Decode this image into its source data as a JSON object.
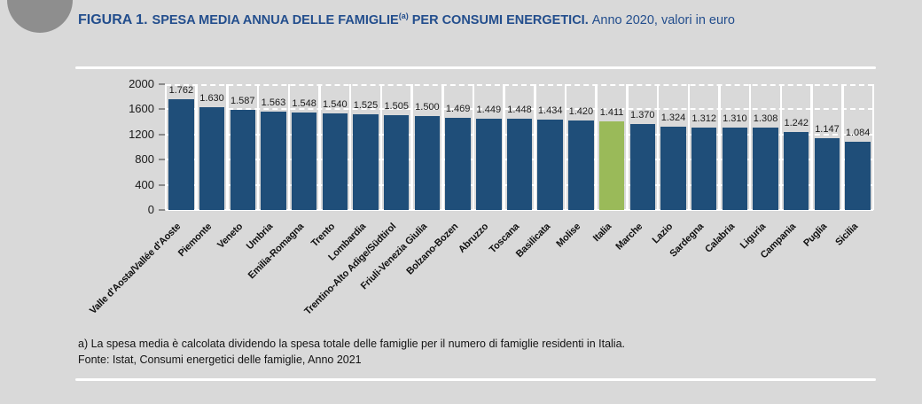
{
  "header": {
    "figure_label": "FIGURA 1.",
    "title_bold": "SPESA MEDIA ANNUA DELLE FAMIGLIE",
    "title_superscript": "(a)",
    "title_bold_2": "PER CONSUMI ENERGETICI.",
    "subtitle": "Anno 2020, valori in euro"
  },
  "icons": {
    "logo": "pie-chart-icon"
  },
  "colors": {
    "title_blue": "#234e8d",
    "bar_blue": "#1f4e79",
    "highlight_green": "#9aba59",
    "background_gray": "#d9d9d9",
    "grid_white": "#ffffff"
  },
  "chart_data": {
    "type": "bar",
    "title": "FIGURA 1. SPESA MEDIA ANNUA DELLE FAMIGLIE(a) PER CONSUMI ENERGETICI. Anno 2020, valori in euro",
    "categories": [
      "Valle d'Aosta/Vallée d'Aoste",
      "Piemonte",
      "Veneto",
      "Umbria",
      "Emilia-Romagna",
      "Trento",
      "Lombardia",
      "Trentino-Alto Adige/Südtirol",
      "Friuli-Venezia Giulia",
      "Bolzano-Bozen",
      "Abruzzo",
      "Toscana",
      "Basilicata",
      "Molise",
      "Italia",
      "Marche",
      "Lazio",
      "Sardegna",
      "Calabria",
      "Liguria",
      "Campania",
      "Puglia",
      "Sicilia"
    ],
    "values": [
      1762,
      1630,
      1587,
      1563,
      1548,
      1540,
      1525,
      1505,
      1500,
      1469,
      1449,
      1448,
      1434,
      1420,
      1411,
      1370,
      1324,
      1312,
      1310,
      1308,
      1242,
      1147,
      1084
    ],
    "value_labels": [
      "1.762",
      "1.630",
      "1.587",
      "1.563",
      "1.548",
      "1.540",
      "1.525",
      "1.505",
      "1.500",
      "1.469",
      "1.449",
      "1.448",
      "1.434",
      "1.420",
      "1.411",
      "1.370",
      "1.324",
      "1.312",
      "1.310",
      "1.308",
      "1.242",
      "1.147",
      "1.084"
    ],
    "highlight_index": 14,
    "highlight_category": "Italia",
    "xlabel": "",
    "ylabel": "",
    "ylim": [
      0,
      2000
    ],
    "yticks": [
      0,
      400,
      800,
      1200,
      1600,
      2000
    ],
    "grid": "horizontal-dashed-white",
    "legend": "none"
  },
  "footnotes": {
    "note_a": "a) La spesa media è calcolata dividendo la spesa totale delle famiglie per il numero di famiglie residenti in Italia.",
    "source": "Fonte: Istat, Consumi energetici delle famiglie, Anno 2021"
  }
}
